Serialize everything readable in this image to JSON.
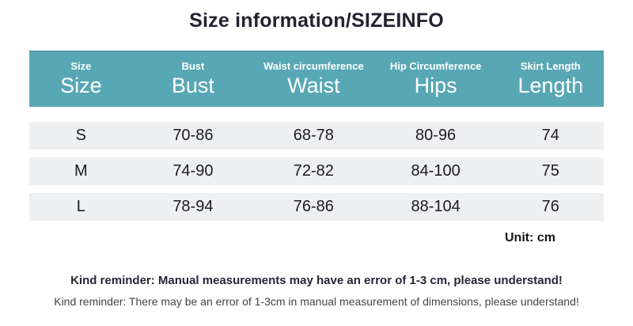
{
  "page": {
    "title": "Size information/SIZEINFO",
    "unit_label": "Unit: cm",
    "reminder_bold": "Kind reminder: Manual measurements may have an error of 1-3 cm, please understand!",
    "reminder_light": "Kind reminder: There may be an error of 1-3cm in manual measurement of dimensions, please understand!"
  },
  "colors": {
    "header_bg": "#58a7b4",
    "header_bg_dark": "#4c96a4",
    "row_bg": "#eeeff1",
    "title_text": "#262130",
    "header_text": "#ffffff"
  },
  "table": {
    "columns": [
      {
        "small": "Size",
        "big": "Size"
      },
      {
        "small": "Bust",
        "big": "Bust"
      },
      {
        "small": "Waist circumference",
        "big": "Waist"
      },
      {
        "small": "Hip Circumference",
        "big": "Hips"
      },
      {
        "small": "Skirt Length",
        "big": "Length"
      }
    ],
    "rows": [
      {
        "size": "S",
        "bust": "70-86",
        "waist": "68-78",
        "hips": "80-96",
        "length": "74"
      },
      {
        "size": "M",
        "bust": "74-90",
        "waist": "72-82",
        "hips": "84-100",
        "length": "75"
      },
      {
        "size": "L",
        "bust": "78-94",
        "waist": "76-86",
        "hips": "88-104",
        "length": "76"
      }
    ]
  }
}
